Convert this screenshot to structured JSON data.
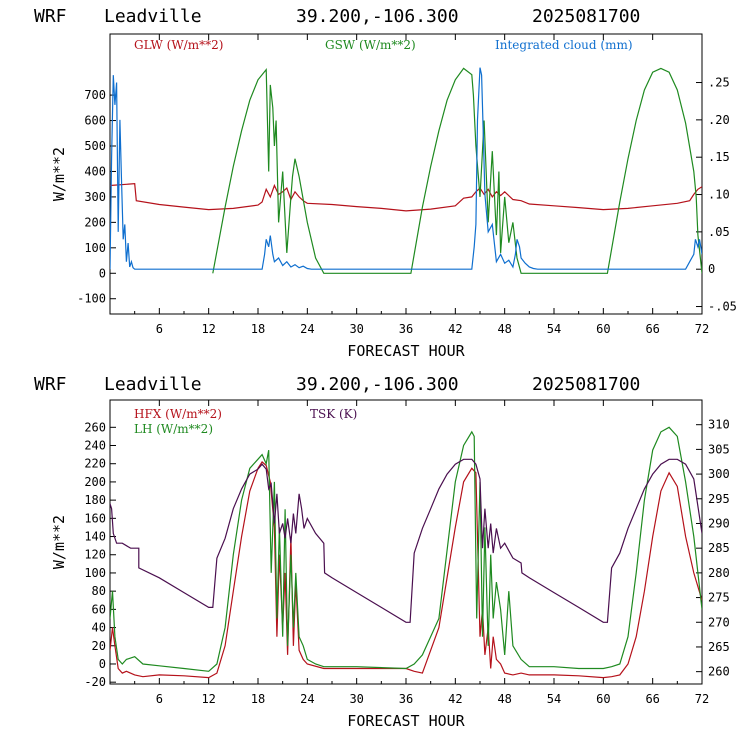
{
  "chart_data": [
    {
      "type": "line",
      "header": {
        "model": "WRF",
        "site": "Leadville",
        "coords": "39.200,-106.300",
        "date": "2025081700"
      },
      "xlabel": "FORECAST HOUR",
      "ylabel": "W/m**2",
      "xlim": [
        0,
        72
      ],
      "xticks": [
        6,
        12,
        18,
        24,
        30,
        36,
        42,
        48,
        54,
        60,
        66,
        72
      ],
      "ylim": [
        -160,
        940
      ],
      "yticks": [
        -100,
        0,
        100,
        200,
        300,
        400,
        500,
        600,
        700
      ],
      "y2lim": [
        -0.06,
        0.315
      ],
      "y2ticks": [
        "-.05",
        "0",
        ".05",
        ".10",
        ".15",
        ".20",
        ".25"
      ],
      "y2tick_values": [
        -0.05,
        0,
        0.05,
        0.1,
        0.15,
        0.2,
        0.25
      ],
      "series": [
        {
          "name": "GLW (W/m**2)",
          "color": "#b5121b",
          "axis": "left",
          "x": [
            0,
            3,
            3.2,
            6,
            9,
            12,
            15,
            18,
            18.5,
            19,
            19.5,
            20,
            20.5,
            21,
            21.5,
            22,
            22.5,
            23,
            23.5,
            24,
            27,
            30,
            33,
            36,
            39,
            42,
            43,
            44,
            44.5,
            45,
            45.5,
            46,
            46.5,
            47,
            47.5,
            48,
            49,
            50,
            51,
            54,
            57,
            60,
            63,
            66,
            69,
            70.5,
            71,
            71.5,
            72
          ],
          "y": [
            345,
            352,
            285,
            270,
            260,
            250,
            255,
            268,
            280,
            330,
            300,
            345,
            310,
            320,
            335,
            290,
            320,
            300,
            285,
            275,
            270,
            262,
            255,
            245,
            252,
            265,
            295,
            300,
            320,
            335,
            310,
            330,
            300,
            320,
            305,
            320,
            290,
            285,
            272,
            265,
            258,
            250,
            255,
            265,
            275,
            285,
            310,
            330,
            340
          ]
        },
        {
          "name": "GSW (W/m**2)",
          "color": "#1f8a20",
          "axis": "left",
          "x": [
            12.5,
            14,
            15,
            16,
            17,
            18,
            19,
            19.3,
            19.5,
            19.8,
            20,
            20.2,
            20.5,
            21,
            21.5,
            22,
            22.2,
            22.5,
            23,
            24,
            25,
            26,
            36.6,
            38,
            39,
            40,
            41,
            42,
            43,
            44,
            44.2,
            44.5,
            45,
            45.5,
            46,
            46.5,
            47,
            47.3,
            47.5,
            48,
            48.5,
            49,
            49.5,
            50,
            60.5,
            62,
            63,
            64,
            65,
            66,
            67,
            68,
            69,
            70,
            71,
            71.3,
            71.5,
            72
          ],
          "y": [
            0,
            260,
            420,
            560,
            680,
            760,
            800,
            400,
            740,
            650,
            500,
            600,
            200,
            400,
            80,
            300,
            380,
            450,
            380,
            200,
            60,
            0,
            0,
            260,
            420,
            560,
            680,
            760,
            805,
            780,
            700,
            500,
            300,
            600,
            200,
            480,
            150,
            400,
            80,
            300,
            120,
            200,
            60,
            0,
            0,
            280,
            450,
            600,
            720,
            790,
            805,
            790,
            720,
            590,
            400,
            300,
            150,
            0
          ]
        },
        {
          "name": "Integrated cloud (mm)",
          "color": "#0f6fcf",
          "axis": "right",
          "x": [
            0,
            0.2,
            0.4,
            0.6,
            0.8,
            1,
            1.2,
            1.4,
            1.6,
            1.8,
            2,
            2.2,
            2.4,
            2.6,
            2.8,
            3,
            18.5,
            18.8,
            19,
            19.3,
            19.5,
            19.8,
            20,
            20.5,
            21,
            21.5,
            22,
            22.5,
            23,
            23.5,
            24,
            24.5,
            44,
            44.3,
            44.5,
            44.7,
            45,
            45.2,
            45.4,
            45.6,
            46,
            46.5,
            47,
            47.5,
            48,
            48.5,
            49,
            49.3,
            49.5,
            49.8,
            50,
            50.5,
            51,
            51.5,
            52,
            70,
            70.5,
            71,
            71.2,
            71.5,
            71.7,
            72
          ],
          "y": [
            0,
            0.15,
            0.26,
            0.22,
            0.25,
            0.05,
            0.2,
            0.12,
            0.04,
            0.06,
            0.01,
            0.035,
            0.003,
            0.01,
            0.002,
            0,
            0,
            0.02,
            0.04,
            0.03,
            0.045,
            0.02,
            0.01,
            0.015,
            0.005,
            0.01,
            0.003,
            0.006,
            0.002,
            0.004,
            0.001,
            0,
            0,
            0.03,
            0.06,
            0.2,
            0.27,
            0.26,
            0.18,
            0.1,
            0.05,
            0.06,
            0.01,
            0.02,
            0.008,
            0.012,
            0.003,
            0.02,
            0.04,
            0.03,
            0.015,
            0.008,
            0.003,
            0.001,
            0,
            0,
            0.01,
            0.02,
            0.04,
            0.03,
            0.04,
            0.02
          ]
        }
      ]
    },
    {
      "type": "line",
      "header": {
        "model": "WRF",
        "site": "Leadville",
        "coords": "39.200,-106.300",
        "date": "2025081700"
      },
      "xlabel": "FORECAST HOUR",
      "ylabel": "W/m**2",
      "xlim": [
        0,
        72
      ],
      "xticks": [
        6,
        12,
        18,
        24,
        30,
        36,
        42,
        48,
        54,
        60,
        66,
        72
      ],
      "ylim": [
        -22,
        290
      ],
      "yticks": [
        -20,
        0,
        20,
        40,
        60,
        80,
        100,
        120,
        140,
        160,
        180,
        200,
        220,
        240,
        260
      ],
      "y2lim": [
        257.5,
        315
      ],
      "y2ticks": [
        260,
        265,
        270,
        275,
        280,
        285,
        290,
        295,
        300,
        305,
        310
      ],
      "series": [
        {
          "name": "HFX (W/m**2)",
          "color": "#b5121b",
          "axis": "left",
          "x": [
            0,
            0.3,
            0.6,
            1,
            1.5,
            2,
            3,
            4,
            6,
            9,
            12,
            13,
            14,
            15,
            16,
            17,
            18,
            18.5,
            19,
            19.5,
            20,
            20.3,
            20.6,
            21,
            21.3,
            21.6,
            22,
            22.3,
            22.6,
            23,
            23.5,
            24,
            26,
            30,
            36,
            37,
            38,
            40,
            42,
            43,
            44,
            44.5,
            45,
            45.3,
            45.6,
            46,
            46.3,
            46.6,
            47,
            47.5,
            48,
            49,
            50,
            51,
            54,
            57,
            60,
            61,
            62,
            63,
            64,
            65,
            66,
            67,
            68,
            69,
            70,
            71,
            72
          ],
          "y": [
            15,
            40,
            20,
            -5,
            -10,
            -8,
            -12,
            -14,
            -12,
            -13,
            -15,
            -10,
            20,
            80,
            140,
            190,
            215,
            222,
            218,
            200,
            150,
            30,
            120,
            40,
            100,
            10,
            140,
            20,
            90,
            15,
            5,
            0,
            -5,
            -5,
            -5,
            -8,
            -10,
            40,
            150,
            200,
            215,
            210,
            30,
            60,
            10,
            40,
            -5,
            30,
            5,
            0,
            -10,
            -12,
            -10,
            -12,
            -12,
            -13,
            -15,
            -14,
            -12,
            0,
            30,
            80,
            140,
            190,
            210,
            195,
            140,
            100,
            70
          ]
        },
        {
          "name": "LH (W/m**2)",
          "color": "#1f8a20",
          "axis": "left",
          "x": [
            0,
            0.3,
            0.6,
            1,
            1.5,
            2,
            3,
            4,
            6,
            9,
            12,
            13,
            14,
            15,
            16,
            17,
            18,
            18.5,
            19,
            19.3,
            19.6,
            20,
            20.3,
            20.6,
            21,
            21.3,
            21.6,
            22,
            22.3,
            22.6,
            23,
            23.5,
            24,
            25,
            26,
            30,
            36,
            37,
            38,
            40,
            42,
            43,
            44,
            44.3,
            44.6,
            45,
            45.3,
            45.6,
            46,
            46.3,
            46.6,
            47,
            47.5,
            48,
            48.5,
            49,
            50,
            51,
            54,
            57,
            60,
            61,
            62,
            63,
            64,
            65,
            66,
            67,
            68,
            69,
            70,
            71,
            72
          ],
          "y": [
            50,
            80,
            30,
            5,
            0,
            5,
            8,
            0,
            -2,
            -5,
            -8,
            0,
            40,
            120,
            180,
            215,
            225,
            230,
            220,
            235,
            100,
            200,
            50,
            150,
            30,
            170,
            20,
            120,
            40,
            100,
            30,
            20,
            5,
            0,
            -3,
            -3,
            -5,
            0,
            10,
            50,
            200,
            240,
            255,
            250,
            50,
            200,
            30,
            150,
            20,
            120,
            50,
            90,
            60,
            10,
            80,
            20,
            5,
            -3,
            -3,
            -5,
            -5,
            -3,
            0,
            30,
            100,
            180,
            235,
            255,
            260,
            250,
            200,
            140,
            60
          ]
        },
        {
          "name": "TSK (K)",
          "color": "#4a0f4f",
          "axis": "right",
          "x": [
            0,
            0.2,
            0.4,
            0.8,
            1.5,
            2.5,
            3.5,
            3.5,
            6,
            9,
            12,
            12.5,
            13,
            14,
            15,
            16,
            17,
            18,
            18.5,
            19,
            19.3,
            19.6,
            20,
            20.3,
            20.6,
            21,
            21.3,
            21.6,
            22,
            22.3,
            22.6,
            23,
            23.3,
            23.6,
            24,
            25,
            26,
            26.1,
            27,
            30,
            33,
            36,
            36.5,
            37,
            38,
            39,
            40,
            41,
            42,
            43,
            44,
            44.5,
            45,
            45.3,
            45.6,
            46,
            46.3,
            46.6,
            47,
            47.5,
            48,
            49,
            50,
            50.1,
            51,
            54,
            57,
            60,
            60.5,
            61,
            62,
            63,
            64,
            65,
            66,
            67,
            68,
            69,
            70,
            71,
            72
          ],
          "y": [
            294,
            293,
            288,
            286,
            286,
            285,
            285,
            281,
            279,
            276,
            273,
            273,
            283,
            287,
            293,
            297,
            300,
            301,
            302,
            301,
            297,
            298,
            290,
            296,
            288,
            290,
            287,
            291,
            286,
            292,
            288,
            296,
            293,
            289,
            291,
            288,
            286,
            280,
            279,
            276,
            273,
            270,
            270,
            284,
            289,
            293,
            297,
            300,
            302,
            303,
            303,
            302,
            299,
            285,
            293,
            285,
            290,
            284,
            289,
            285,
            286,
            283,
            282,
            280,
            279,
            276,
            273,
            270,
            270,
            281,
            284,
            289,
            293,
            297,
            300,
            302,
            303,
            303,
            302,
            299,
            288
          ]
        }
      ]
    }
  ]
}
